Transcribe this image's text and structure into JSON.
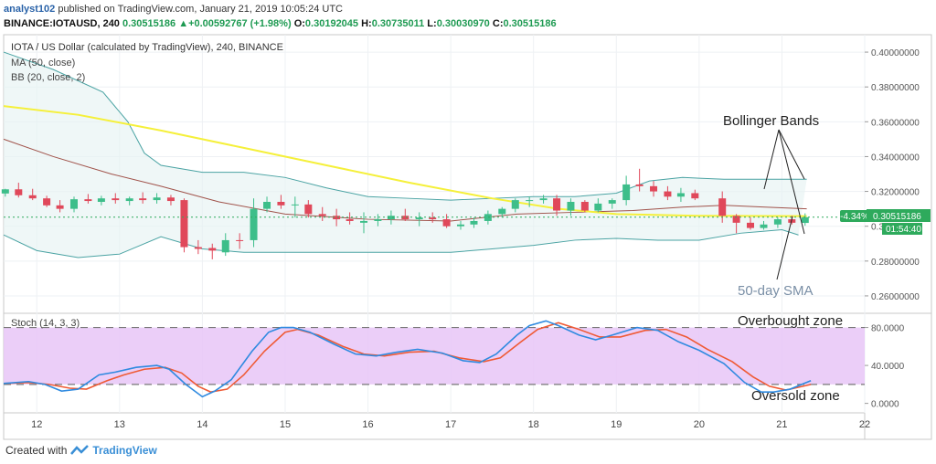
{
  "header": {
    "user": "analyst102",
    "published_text": " published on TradingView.com, January 21, 2019 10:05:24 UTC",
    "symbol_line": "BINANCE:IOTAUSD, 240",
    "last": "0.30515186",
    "change_arrow": "▲",
    "change": "+0.00592767 (+1.98%)",
    "o_label": "O:",
    "o_value": "0.30192045",
    "h_label": "H:",
    "h_value": "0.30735011",
    "l_label": "L:",
    "l_value": "0.30030970",
    "c_label": "C:",
    "c_value": "0.30515186"
  },
  "legend": {
    "line1": "IOTA / US Dollar (calculated by TradingView), 240, BINANCE",
    "line2": "MA (50, close)",
    "line3": "BB (20, close, 2)",
    "stoch": "Stoch (14, 3, 3)"
  },
  "annotations": {
    "bollinger": "Bollinger Bands",
    "sma": "50-day SMA",
    "overbought": "Overbought zone",
    "oversold": "Oversold zone"
  },
  "price_badge": {
    "pct": "-4.34%",
    "price": "0.30515186",
    "countdown": "01:54:40"
  },
  "footer": {
    "created_with": "Created with",
    "brand": "TradingView"
  },
  "colors": {
    "up": "#3dbe8a",
    "down": "#e0485a",
    "ma": "#f5f03a",
    "bb_basis": "#a0524a",
    "bb_band": "#4aa3a3",
    "stoch_k": "#2f8ae0",
    "stoch_d": "#ef5a35",
    "stoch_fill": "#e8c6f7",
    "badge": "#2eaa5c"
  },
  "chart_data": [
    {
      "type": "candlestick",
      "title": "IOTA / US Dollar (calculated by TradingView), 240, BINANCE",
      "y_ticks": [
        "0.40000000",
        "0.38000000",
        "0.36000000",
        "0.34000000",
        "0.32000000",
        "0.30000000",
        "0.28000000",
        "0.26000000"
      ],
      "x_ticks": [
        "12",
        "13",
        "14",
        "15",
        "16",
        "17",
        "18",
        "19",
        "20",
        "21",
        "22"
      ],
      "ylim": [
        0.25,
        0.41
      ],
      "xlim": [
        11.6,
        22.0
      ],
      "candles": [
        {
          "t": 11.62,
          "o": 0.3188,
          "h": 0.3215,
          "l": 0.317,
          "c": 0.3212
        },
        {
          "t": 11.78,
          "o": 0.3212,
          "h": 0.325,
          "l": 0.3165,
          "c": 0.3178
        },
        {
          "t": 11.95,
          "o": 0.3178,
          "h": 0.3215,
          "l": 0.315,
          "c": 0.316
        },
        {
          "t": 12.12,
          "o": 0.316,
          "h": 0.3175,
          "l": 0.311,
          "c": 0.312
        },
        {
          "t": 12.28,
          "o": 0.312,
          "h": 0.315,
          "l": 0.308,
          "c": 0.31
        },
        {
          "t": 12.45,
          "o": 0.31,
          "h": 0.317,
          "l": 0.308,
          "c": 0.3155
        },
        {
          "t": 12.62,
          "o": 0.3155,
          "h": 0.3185,
          "l": 0.313,
          "c": 0.3145
        },
        {
          "t": 12.78,
          "o": 0.314,
          "h": 0.3175,
          "l": 0.312,
          "c": 0.316
        },
        {
          "t": 12.95,
          "o": 0.316,
          "h": 0.319,
          "l": 0.313,
          "c": 0.315
        },
        {
          "t": 13.12,
          "o": 0.3145,
          "h": 0.317,
          "l": 0.312,
          "c": 0.316
        },
        {
          "t": 13.28,
          "o": 0.316,
          "h": 0.3195,
          "l": 0.313,
          "c": 0.315
        },
        {
          "t": 13.45,
          "o": 0.315,
          "h": 0.319,
          "l": 0.313,
          "c": 0.3165
        },
        {
          "t": 13.62,
          "o": 0.3165,
          "h": 0.318,
          "l": 0.312,
          "c": 0.3145
        },
        {
          "t": 13.78,
          "o": 0.315,
          "h": 0.316,
          "l": 0.285,
          "c": 0.288
        },
        {
          "t": 13.95,
          "o": 0.288,
          "h": 0.292,
          "l": 0.284,
          "c": 0.287
        },
        {
          "t": 14.12,
          "o": 0.2875,
          "h": 0.29,
          "l": 0.281,
          "c": 0.286
        },
        {
          "t": 14.28,
          "o": 0.285,
          "h": 0.296,
          "l": 0.283,
          "c": 0.292
        },
        {
          "t": 14.45,
          "o": 0.292,
          "h": 0.296,
          "l": 0.287,
          "c": 0.2915
        },
        {
          "t": 14.62,
          "o": 0.292,
          "h": 0.316,
          "l": 0.288,
          "c": 0.31
        },
        {
          "t": 14.78,
          "o": 0.31,
          "h": 0.317,
          "l": 0.308,
          "c": 0.314
        },
        {
          "t": 14.95,
          "o": 0.314,
          "h": 0.318,
          "l": 0.31,
          "c": 0.312
        },
        {
          "t": 15.12,
          "o": 0.312,
          "h": 0.317,
          "l": 0.305,
          "c": 0.3125
        },
        {
          "t": 15.28,
          "o": 0.3125,
          "h": 0.315,
          "l": 0.305,
          "c": 0.307
        },
        {
          "t": 15.45,
          "o": 0.307,
          "h": 0.311,
          "l": 0.303,
          "c": 0.306
        },
        {
          "t": 15.62,
          "o": 0.306,
          "h": 0.31,
          "l": 0.3,
          "c": 0.304
        },
        {
          "t": 15.78,
          "o": 0.304,
          "h": 0.308,
          "l": 0.301,
          "c": 0.303
        },
        {
          "t": 15.95,
          "o": 0.302,
          "h": 0.308,
          "l": 0.296,
          "c": 0.303
        },
        {
          "t": 16.12,
          "o": 0.303,
          "h": 0.307,
          "l": 0.3,
          "c": 0.304
        },
        {
          "t": 16.28,
          "o": 0.304,
          "h": 0.309,
          "l": 0.301,
          "c": 0.306
        },
        {
          "t": 16.45,
          "o": 0.306,
          "h": 0.31,
          "l": 0.303,
          "c": 0.304
        },
        {
          "t": 16.62,
          "o": 0.304,
          "h": 0.308,
          "l": 0.3,
          "c": 0.305
        },
        {
          "t": 16.78,
          "o": 0.305,
          "h": 0.308,
          "l": 0.302,
          "c": 0.304
        },
        {
          "t": 16.95,
          "o": 0.304,
          "h": 0.307,
          "l": 0.299,
          "c": 0.3
        },
        {
          "t": 17.12,
          "o": 0.3,
          "h": 0.303,
          "l": 0.298,
          "c": 0.301
        },
        {
          "t": 17.28,
          "o": 0.301,
          "h": 0.305,
          "l": 0.299,
          "c": 0.303
        },
        {
          "t": 17.45,
          "o": 0.303,
          "h": 0.309,
          "l": 0.301,
          "c": 0.307
        },
        {
          "t": 17.62,
          "o": 0.307,
          "h": 0.311,
          "l": 0.305,
          "c": 0.31
        },
        {
          "t": 17.78,
          "o": 0.31,
          "h": 0.316,
          "l": 0.308,
          "c": 0.315
        },
        {
          "t": 17.95,
          "o": 0.315,
          "h": 0.317,
          "l": 0.311,
          "c": 0.315
        },
        {
          "t": 18.12,
          "o": 0.315,
          "h": 0.318,
          "l": 0.313,
          "c": 0.316
        },
        {
          "t": 18.28,
          "o": 0.316,
          "h": 0.318,
          "l": 0.306,
          "c": 0.309
        },
        {
          "t": 18.45,
          "o": 0.309,
          "h": 0.316,
          "l": 0.306,
          "c": 0.314
        },
        {
          "t": 18.62,
          "o": 0.314,
          "h": 0.315,
          "l": 0.308,
          "c": 0.309
        },
        {
          "t": 18.78,
          "o": 0.309,
          "h": 0.316,
          "l": 0.308,
          "c": 0.313
        },
        {
          "t": 18.95,
          "o": 0.313,
          "h": 0.316,
          "l": 0.31,
          "c": 0.315
        },
        {
          "t": 19.12,
          "o": 0.315,
          "h": 0.329,
          "l": 0.312,
          "c": 0.324
        },
        {
          "t": 19.28,
          "o": 0.324,
          "h": 0.333,
          "l": 0.32,
          "c": 0.323
        },
        {
          "t": 19.45,
          "o": 0.323,
          "h": 0.326,
          "l": 0.317,
          "c": 0.32
        },
        {
          "t": 19.62,
          "o": 0.32,
          "h": 0.323,
          "l": 0.315,
          "c": 0.317
        },
        {
          "t": 19.78,
          "o": 0.317,
          "h": 0.322,
          "l": 0.314,
          "c": 0.319
        },
        {
          "t": 19.95,
          "o": 0.319,
          "h": 0.321,
          "l": 0.315,
          "c": 0.316
        },
        {
          "t": 20.28,
          "o": 0.316,
          "h": 0.32,
          "l": 0.302,
          "c": 0.306
        },
        {
          "t": 20.45,
          "o": 0.306,
          "h": 0.307,
          "l": 0.296,
          "c": 0.302
        },
        {
          "t": 20.62,
          "o": 0.302,
          "h": 0.305,
          "l": 0.298,
          "c": 0.299
        },
        {
          "t": 20.78,
          "o": 0.299,
          "h": 0.303,
          "l": 0.298,
          "c": 0.301
        },
        {
          "t": 20.95,
          "o": 0.301,
          "h": 0.305,
          "l": 0.299,
          "c": 0.304
        },
        {
          "t": 21.12,
          "o": 0.304,
          "h": 0.306,
          "l": 0.301,
          "c": 0.302
        },
        {
          "t": 21.28,
          "o": 0.3019,
          "h": 0.3074,
          "l": 0.3003,
          "c": 0.3052
        }
      ],
      "ma50": [
        [
          11.6,
          0.369
        ],
        [
          12.5,
          0.364
        ],
        [
          13.5,
          0.355
        ],
        [
          14.5,
          0.345
        ],
        [
          15.5,
          0.335
        ],
        [
          16.5,
          0.325
        ],
        [
          17.5,
          0.316
        ],
        [
          18.3,
          0.31
        ],
        [
          19.0,
          0.307
        ],
        [
          20.0,
          0.306
        ],
        [
          21.3,
          0.3058
        ]
      ],
      "bb_basis": [
        [
          11.6,
          0.35
        ],
        [
          12.2,
          0.34
        ],
        [
          12.9,
          0.33
        ],
        [
          13.5,
          0.323
        ],
        [
          14.2,
          0.314
        ],
        [
          15.0,
          0.307
        ],
        [
          16.0,
          0.304
        ],
        [
          17.0,
          0.303
        ],
        [
          17.8,
          0.307
        ],
        [
          18.5,
          0.308
        ],
        [
          19.2,
          0.309
        ],
        [
          19.8,
          0.311
        ],
        [
          20.3,
          0.312
        ],
        [
          20.8,
          0.311
        ],
        [
          21.3,
          0.31
        ]
      ],
      "bb_upper": [
        [
          11.6,
          0.4
        ],
        [
          12.2,
          0.39
        ],
        [
          12.8,
          0.377
        ],
        [
          13.1,
          0.36
        ],
        [
          13.3,
          0.342
        ],
        [
          13.5,
          0.335
        ],
        [
          14.0,
          0.331
        ],
        [
          14.5,
          0.331
        ],
        [
          15.0,
          0.328
        ],
        [
          15.5,
          0.322
        ],
        [
          16.0,
          0.317
        ],
        [
          16.5,
          0.316
        ],
        [
          17.0,
          0.315
        ],
        [
          17.5,
          0.316
        ],
        [
          18.0,
          0.317
        ],
        [
          18.5,
          0.317
        ],
        [
          19.0,
          0.319
        ],
        [
          19.4,
          0.326
        ],
        [
          19.8,
          0.328
        ],
        [
          20.3,
          0.327
        ],
        [
          21.3,
          0.327
        ]
      ],
      "bb_lower": [
        [
          11.6,
          0.295
        ],
        [
          12.0,
          0.286
        ],
        [
          12.5,
          0.282
        ],
        [
          13.0,
          0.284
        ],
        [
          13.5,
          0.294
        ],
        [
          14.0,
          0.287
        ],
        [
          14.5,
          0.285
        ],
        [
          15.0,
          0.285
        ],
        [
          16.0,
          0.285
        ],
        [
          17.0,
          0.285
        ],
        [
          17.5,
          0.287
        ],
        [
          18.0,
          0.289
        ],
        [
          18.5,
          0.292
        ],
        [
          19.0,
          0.293
        ],
        [
          19.5,
          0.292
        ],
        [
          20.0,
          0.292
        ],
        [
          20.5,
          0.296
        ],
        [
          21.0,
          0.298
        ],
        [
          21.2,
          0.295
        ]
      ]
    },
    {
      "type": "line",
      "title": "Stoch (14, 3, 3)",
      "y_ticks": [
        "80.0000",
        "40.0000",
        "0.0000"
      ],
      "ylim": [
        -10,
        95
      ],
      "levels": [
        80,
        20
      ],
      "series": [
        {
          "name": "%K",
          "points": [
            [
              11.6,
              21
            ],
            [
              11.9,
              23
            ],
            [
              12.1,
              20
            ],
            [
              12.3,
              13
            ],
            [
              12.5,
              15
            ],
            [
              12.75,
              30
            ],
            [
              12.95,
              33
            ],
            [
              13.2,
              38
            ],
            [
              13.45,
              40
            ],
            [
              13.6,
              36
            ],
            [
              13.8,
              20
            ],
            [
              14.0,
              7
            ],
            [
              14.15,
              13
            ],
            [
              14.35,
              25
            ],
            [
              14.6,
              55
            ],
            [
              14.8,
              75
            ],
            [
              14.95,
              80
            ],
            [
              15.1,
              80
            ],
            [
              15.3,
              75
            ],
            [
              15.6,
              62
            ],
            [
              15.85,
              52
            ],
            [
              16.1,
              50
            ],
            [
              16.35,
              54
            ],
            [
              16.6,
              57
            ],
            [
              16.9,
              53
            ],
            [
              17.15,
              45
            ],
            [
              17.35,
              43
            ],
            [
              17.55,
              52
            ],
            [
              17.8,
              72
            ],
            [
              17.95,
              82
            ],
            [
              18.15,
              87
            ],
            [
              18.3,
              82
            ],
            [
              18.55,
              72
            ],
            [
              18.75,
              67
            ],
            [
              18.95,
              72
            ],
            [
              19.25,
              80
            ],
            [
              19.5,
              77
            ],
            [
              19.75,
              65
            ],
            [
              20.0,
              56
            ],
            [
              20.3,
              42
            ],
            [
              20.55,
              22
            ],
            [
              20.75,
              12
            ],
            [
              20.9,
              12
            ],
            [
              21.1,
              15
            ],
            [
              21.35,
              24
            ]
          ]
        },
        {
          "name": "%D",
          "points": [
            [
              11.6,
              21
            ],
            [
              11.9,
              22
            ],
            [
              12.15,
              20
            ],
            [
              12.4,
              16
            ],
            [
              12.6,
              15
            ],
            [
              12.85,
              24
            ],
            [
              13.05,
              30
            ],
            [
              13.3,
              36
            ],
            [
              13.55,
              38
            ],
            [
              13.75,
              32
            ],
            [
              13.95,
              18
            ],
            [
              14.1,
              12
            ],
            [
              14.3,
              15
            ],
            [
              14.5,
              30
            ],
            [
              14.75,
              55
            ],
            [
              15.0,
              75
            ],
            [
              15.15,
              78
            ],
            [
              15.4,
              72
            ],
            [
              15.7,
              60
            ],
            [
              15.95,
              52
            ],
            [
              16.2,
              50
            ],
            [
              16.5,
              54
            ],
            [
              16.8,
              55
            ],
            [
              17.1,
              48
            ],
            [
              17.4,
              44
            ],
            [
              17.6,
              48
            ],
            [
              17.85,
              65
            ],
            [
              18.05,
              78
            ],
            [
              18.3,
              85
            ],
            [
              18.55,
              78
            ],
            [
              18.8,
              70
            ],
            [
              19.05,
              70
            ],
            [
              19.35,
              77
            ],
            [
              19.6,
              78
            ],
            [
              19.85,
              70
            ],
            [
              20.1,
              57
            ],
            [
              20.4,
              44
            ],
            [
              20.65,
              28
            ],
            [
              20.85,
              18
            ],
            [
              21.05,
              14
            ],
            [
              21.35,
              20
            ]
          ]
        }
      ]
    }
  ]
}
